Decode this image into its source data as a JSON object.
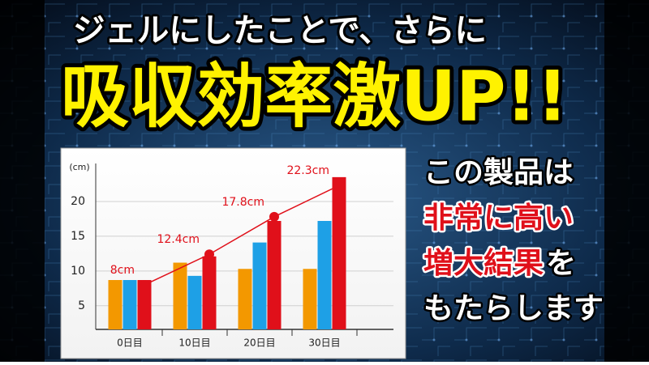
{
  "headline": "ジェルにしたことで、さらに",
  "big_title": "吸収効率激UP!!",
  "side_text": [
    [
      {
        "text": "この製品は",
        "color": "#ffffff"
      }
    ],
    [
      {
        "text": "非常に高い",
        "color": "#e0101a"
      }
    ],
    [
      {
        "text": "増大結果",
        "color": "#e0101a"
      },
      {
        "text": "を",
        "color": "#ffffff"
      }
    ],
    [
      {
        "text": "もたらします",
        "color": "#ffffff"
      }
    ]
  ],
  "chart_data": {
    "type": "bar",
    "y_label": "(cm)",
    "categories": [
      "0日目",
      "10日目",
      "20日目",
      "30日目"
    ],
    "series": [
      {
        "color": "#f39800",
        "values": [
          8.7,
          11.2,
          10.3,
          10.3
        ]
      },
      {
        "color": "#1ea0e6",
        "values": [
          8.7,
          9.3,
          14.1,
          17.2
        ]
      },
      {
        "color": "#e0101a",
        "values": [
          8.7,
          12.1,
          17.2,
          23.5
        ]
      },
      {
        "type": "line",
        "color": "#e0101a",
        "values": [
          8,
          12.4,
          17.8,
          22.3
        ],
        "value_labels": [
          "8cm",
          "12.4cm",
          "17.8cm",
          "22.3cm"
        ]
      }
    ],
    "ylim": [
      1.6,
      25
    ],
    "yticks": [
      5,
      10,
      15,
      20
    ],
    "grid": true
  }
}
